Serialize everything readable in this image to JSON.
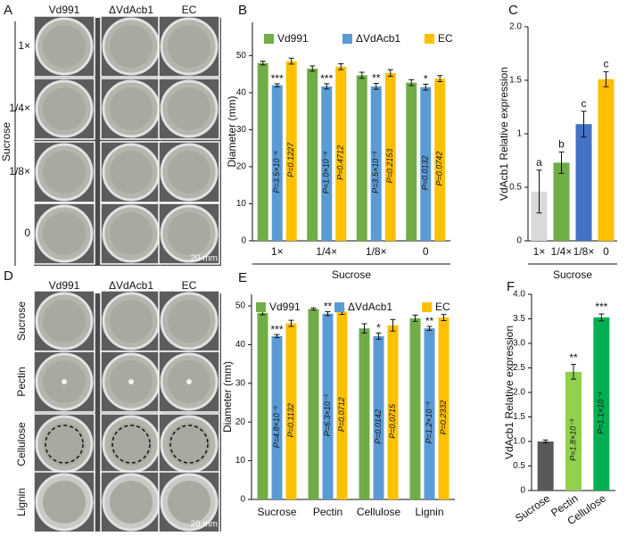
{
  "photo_panels": [
    {
      "panel": "A",
      "columns": [
        "Vd991",
        "ΔVdAcb1",
        "EC"
      ],
      "group_label": "Sucrose",
      "rows": [
        "1×",
        "1/4×",
        "1/8×",
        "0"
      ],
      "scale": "20 mm"
    },
    {
      "panel": "D",
      "columns": [
        "Vd991",
        "ΔVdAcb1",
        "EC"
      ],
      "rows": [
        "Sucrose",
        "Pectin",
        "Cellulose",
        "Lignin"
      ],
      "scale": "20 mm"
    }
  ],
  "chart_data": [
    {
      "panel": "B",
      "type": "bar",
      "ylabel": "Diameter (mm)",
      "xlabel": "Sucrose",
      "categories": [
        "1×",
        "1/4×",
        "1/8×",
        "0"
      ],
      "series": [
        {
          "name": "Vd991",
          "color": "#70ad47",
          "values": [
            48,
            46.5,
            44.7,
            42.7
          ],
          "errors": [
            0.5,
            0.7,
            0.8,
            0.8
          ]
        },
        {
          "name": "ΔVdAcb1",
          "color": "#5b9bd5",
          "values": [
            42,
            41.7,
            41.7,
            41.5
          ],
          "errors": [
            0.4,
            0.7,
            0.8,
            0.8
          ],
          "stars": [
            "***",
            "***",
            "**",
            "*"
          ],
          "p_values": [
            "P=3.5×10⁻⁶",
            "P=1.0×10⁻⁴",
            "P=3.5×10⁻³",
            "P=0.0132"
          ]
        },
        {
          "name": "EC",
          "color": "#ffc000",
          "values": [
            48.5,
            47,
            45.3,
            43.8
          ],
          "errors": [
            0.8,
            0.8,
            0.9,
            0.8
          ],
          "p_values": [
            "P=0.1227",
            "P=0.4712",
            "P=0.2153",
            "P=0.0742"
          ]
        }
      ],
      "ylim": [
        0,
        59
      ],
      "yticks": [
        0,
        10,
        20,
        30,
        40,
        50
      ]
    },
    {
      "panel": "C",
      "type": "bar",
      "ylabel": "VdAcb1 Relative expression",
      "xlabel": "Sucrose",
      "categories": [
        "1×",
        "1/4×",
        "1/8×",
        "0"
      ],
      "values": [
        0.46,
        0.73,
        1.09,
        1.51
      ],
      "errors": [
        0.2,
        0.1,
        0.12,
        0.07
      ],
      "colors": [
        "#d9d9d9",
        "#70ad47",
        "#4472c4",
        "#ffc000"
      ],
      "letters": [
        "a",
        "b",
        "c",
        "c"
      ],
      "ylim": [
        0,
        2
      ],
      "yticks": [
        0,
        0.5,
        1,
        1.5,
        {
          "value": 2,
          "label": "2.0"
        }
      ]
    },
    {
      "panel": "E",
      "type": "bar",
      "ylabel": "Diameter (mm)",
      "categories": [
        "Sucrose",
        "Pectin",
        "Cellulose",
        "Lignin"
      ],
      "series": [
        {
          "name": "Vd991",
          "color": "#70ad47",
          "values": [
            48.2,
            49.2,
            44.2,
            46.8
          ],
          "errors": [
            0.5,
            0.3,
            1.2,
            0.8
          ]
        },
        {
          "name": "ΔVdAcb1",
          "color": "#5b9bd5",
          "values": [
            42.2,
            48,
            42.2,
            44.2
          ],
          "errors": [
            0.4,
            0.5,
            0.8,
            0.5
          ],
          "stars": [
            "***",
            "**",
            "*",
            "**"
          ],
          "p_values": [
            "P=4.8×10⁻⁵",
            "P=6.3×10⁻³",
            "P=0.0142",
            "P=1.2×10⁻³"
          ]
        },
        {
          "name": "EC",
          "color": "#ffc000",
          "values": [
            45.5,
            48.5,
            45,
            47
          ],
          "errors": [
            0.8,
            0.7,
            1.5,
            0.8
          ],
          "p_values": [
            "P=0.1132",
            "P=0.0712",
            "P=0.0715",
            "P=0.2332"
          ]
        }
      ],
      "ylim": [
        0,
        53
      ],
      "yticks": [
        0,
        10,
        20,
        30,
        40,
        50
      ]
    },
    {
      "panel": "F",
      "type": "bar",
      "ylabel": "VdAcb1 Relative expression",
      "categories": [
        "Sucrose",
        "Pectin",
        "Cellulose"
      ],
      "values": [
        1,
        2.42,
        3.53
      ],
      "errors": [
        0.03,
        0.15,
        0.07
      ],
      "colors": [
        "#595959",
        "#92d050",
        "#00b050"
      ],
      "stars": [
        null,
        "**",
        "***"
      ],
      "p_values": [
        null,
        "P=1.8×10⁻³",
        "P=1.1×10⁻⁴"
      ],
      "ylim": [
        0,
        4
      ],
      "yticks": [
        0,
        0.5,
        {
          "value": 1,
          "label": "1.0"
        },
        1.5,
        {
          "value": 2,
          "label": "2.0"
        },
        2.5,
        {
          "value": 3,
          "label": "3.0"
        },
        3.5,
        {
          "value": 4,
          "label": "4.0"
        }
      ]
    }
  ]
}
